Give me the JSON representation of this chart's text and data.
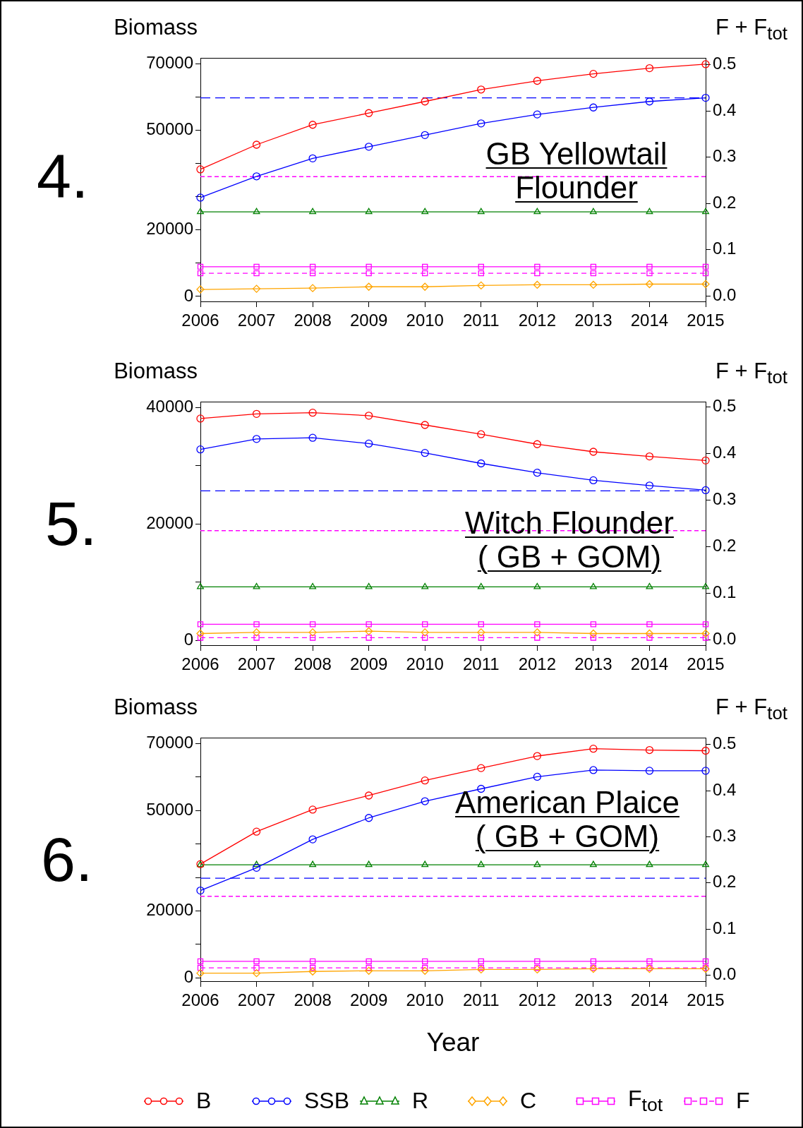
{
  "chart_data": [
    {
      "type": "line",
      "ylabel": "Biomass",
      "y2label": "F + F$_{tot}$",
      "annotations": [
        "4.",
        "GB Yellowtail\nFlounder"
      ],
      "categories": [
        "2006",
        "2007",
        "2008",
        "2009",
        "2010",
        "2011",
        "2012",
        "2013",
        "2014",
        "2015"
      ],
      "series": [
        {
          "color": "#ff0000",
          "marker": "circle",
          "values": [
            38200,
            45600,
            51600,
            55100,
            58600,
            62200,
            64800,
            66900,
            68600,
            69800
          ]
        },
        {
          "color": "#0000ff",
          "marker": "circle",
          "values": [
            29700,
            36100,
            41500,
            45000,
            48500,
            52000,
            54700,
            56800,
            58600,
            59700
          ]
        },
        {
          "color": "#008000",
          "marker": "triangle",
          "values": [
            25400,
            25400,
            25400,
            25400,
            25400,
            25400,
            25400,
            25400,
            25400,
            25400
          ]
        },
        {
          "color": "#ffa500",
          "marker": "diamond",
          "values": [
            2100,
            2300,
            2500,
            2900,
            2900,
            3300,
            3500,
            3500,
            3700,
            3700
          ]
        },
        {
          "color": "#ff00ff",
          "marker": "square",
          "axis": "y2",
          "values": [
            0.063,
            0.063,
            0.063,
            0.063,
            0.063,
            0.063,
            0.063,
            0.063,
            0.063,
            0.063
          ]
        },
        {
          "color": "#ff00ff",
          "marker": "square",
          "axis": "y2",
          "line_style": "dashed",
          "values": [
            0.049,
            0.049,
            0.049,
            0.049,
            0.049,
            0.049,
            0.049,
            0.049,
            0.049,
            0.049
          ]
        }
      ],
      "ylim": [
        -1500,
        71700
      ],
      "yticks": [
        0,
        {
          "value": 10000,
          "label": null
        },
        20000,
        {
          "value": 30000,
          "label": null
        },
        {
          "value": 40000,
          "label": null
        },
        50000,
        {
          "value": 60000,
          "label": null
        },
        70000
      ],
      "y2lim": [
        -0.012,
        0.515
      ],
      "y2ticks": [
        {
          "value": 0,
          "label": "0.0"
        },
        {
          "value": 0.1,
          "label": "0.1"
        },
        {
          "value": 0.2,
          "label": "0.2"
        },
        {
          "value": 0.3,
          "label": "0.3"
        },
        {
          "value": 0.4,
          "label": "0.4"
        },
        {
          "value": 0.5,
          "label": "0.5"
        }
      ],
      "ref_lines": [
        {
          "axis": "y",
          "value": 59700,
          "color": "#0000ff",
          "line_style": "dashed"
        },
        {
          "axis": "y2",
          "value": 0.258,
          "color": "#ff00ff",
          "line_style": "dotted"
        }
      ],
      "grid": false
    },
    {
      "type": "line",
      "ylabel": "Biomass",
      "y2label": "F + F$_{tot}$",
      "annotations": [
        "5.",
        "Witch Flounder\n( GB + GOM)"
      ],
      "categories": [
        "2006",
        "2007",
        "2008",
        "2009",
        "2010",
        "2011",
        "2012",
        "2013",
        "2014",
        "2015"
      ],
      "series": [
        {
          "color": "#ff0000",
          "marker": "circle",
          "values": [
            38100,
            38900,
            39100,
            38600,
            37000,
            35400,
            33700,
            32400,
            31600,
            30900
          ]
        },
        {
          "color": "#0000ff",
          "marker": "circle",
          "values": [
            32800,
            34600,
            34800,
            33800,
            32200,
            30400,
            28800,
            27500,
            26600,
            25800
          ]
        },
        {
          "color": "#008000",
          "marker": "triangle",
          "values": [
            9200,
            9200,
            9200,
            9200,
            9200,
            9200,
            9200,
            9200,
            9200,
            9200
          ]
        },
        {
          "color": "#ffa500",
          "marker": "diamond",
          "values": [
            1200,
            1400,
            1400,
            1600,
            1400,
            1400,
            1400,
            1200,
            1200,
            1200
          ]
        },
        {
          "color": "#ff00ff",
          "marker": "square",
          "axis": "y2",
          "values": [
            0.033,
            0.033,
            0.033,
            0.033,
            0.033,
            0.033,
            0.033,
            0.033,
            0.033,
            0.033
          ]
        },
        {
          "color": "#ff00ff",
          "marker": "square",
          "axis": "y2",
          "line_style": "dashed",
          "values": [
            0.004,
            0.004,
            0.004,
            0.004,
            0.004,
            0.004,
            0.004,
            0.004,
            0.004,
            0.004
          ]
        }
      ],
      "ylim": [
        -800,
        41000
      ],
      "yticks": [
        0,
        {
          "value": 10000,
          "label": null
        },
        20000,
        {
          "value": 30000,
          "label": null
        },
        40000
      ],
      "y2lim": [
        -0.012,
        0.511
      ],
      "y2ticks": [
        {
          "value": 0,
          "label": "0.0"
        },
        {
          "value": 0.1,
          "label": "0.1"
        },
        {
          "value": 0.2,
          "label": "0.2"
        },
        {
          "value": 0.3,
          "label": "0.3"
        },
        {
          "value": 0.4,
          "label": "0.4"
        },
        {
          "value": 0.5,
          "label": "0.5"
        }
      ],
      "ref_lines": [
        {
          "axis": "y",
          "value": 25700,
          "color": "#0000ff",
          "line_style": "dashed"
        },
        {
          "axis": "y2",
          "value": 0.234,
          "color": "#ff00ff",
          "line_style": "dotted"
        }
      ],
      "grid": false
    },
    {
      "type": "line",
      "ylabel": "Biomass",
      "y2label": "F + F$_{tot}$",
      "xlabel": "Year",
      "annotations": [
        "6.",
        "American Plaice\n( GB + GOM)"
      ],
      "categories": [
        "2006",
        "2007",
        "2008",
        "2009",
        "2010",
        "2011",
        "2012",
        "2013",
        "2014",
        "2015"
      ],
      "series": [
        {
          "name": "B",
          "color": "#ff0000",
          "marker": "circle",
          "values": [
            34000,
            43700,
            50300,
            54500,
            59000,
            62700,
            66300,
            68500,
            68100,
            67900
          ]
        },
        {
          "name": "SSB",
          "color": "#0000ff",
          "marker": "circle",
          "values": [
            26100,
            32900,
            41400,
            47800,
            52800,
            56500,
            60100,
            62100,
            61900,
            61900
          ]
        },
        {
          "name": "R",
          "color": "#008000",
          "marker": "triangle",
          "values": [
            33800,
            33800,
            33800,
            33800,
            33800,
            33800,
            33800,
            33800,
            33800,
            33800
          ]
        },
        {
          "name": "C",
          "color": "#ffa500",
          "marker": "diamond",
          "values": [
            1400,
            1400,
            1900,
            2100,
            2100,
            2500,
            2500,
            2700,
            2700,
            2700
          ]
        },
        {
          "name": "F$_{tot}$",
          "color": "#ff00ff",
          "marker": "square",
          "axis": "y2",
          "values": [
            0.03,
            0.03,
            0.03,
            0.03,
            0.03,
            0.03,
            0.03,
            0.03,
            0.03,
            0.03
          ]
        },
        {
          "name": "F",
          "color": "#ff00ff",
          "marker": "square",
          "axis": "y2",
          "line_style": "dashed",
          "values": [
            0.016,
            0.016,
            0.016,
            0.016,
            0.016,
            0.016,
            0.016,
            0.016,
            0.016,
            0.016
          ]
        }
      ],
      "ylim": [
        -1000,
        71800
      ],
      "yticks": [
        0,
        {
          "value": 10000,
          "label": null
        },
        20000,
        {
          "value": 30000,
          "label": null
        },
        {
          "value": 40000,
          "label": null
        },
        50000,
        {
          "value": 60000,
          "label": null
        },
        70000
      ],
      "y2lim": [
        -0.013,
        0.515
      ],
      "y2ticks": [
        {
          "value": 0,
          "label": "0.0"
        },
        {
          "value": 0.1,
          "label": "0.1"
        },
        {
          "value": 0.2,
          "label": "0.2"
        },
        {
          "value": 0.3,
          "label": "0.3"
        },
        {
          "value": 0.4,
          "label": "0.4"
        },
        {
          "value": 0.5,
          "label": "0.5"
        }
      ],
      "ref_lines": [
        {
          "axis": "y",
          "value": 29800,
          "color": "#0000ff",
          "line_style": "dashed"
        },
        {
          "axis": "y2",
          "value": 0.171,
          "color": "#ff00ff",
          "line_style": "dotted"
        }
      ],
      "grid": false,
      "legend": "bottom"
    }
  ]
}
